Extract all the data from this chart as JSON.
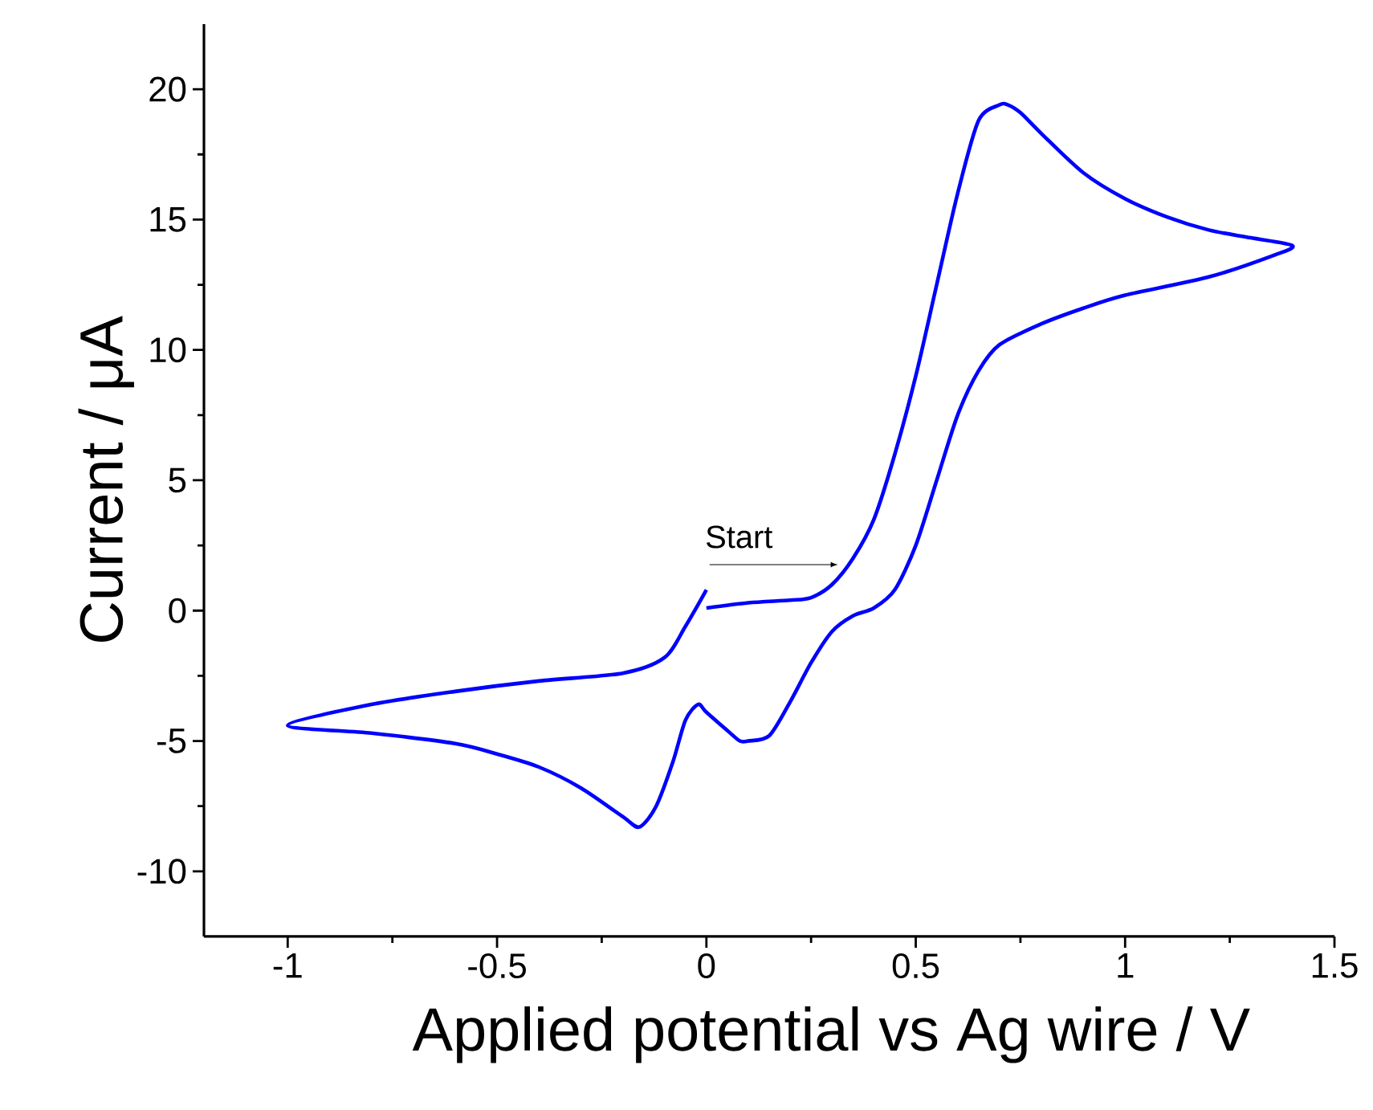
{
  "chart_data": {
    "type": "line",
    "xlabel": "Applied potential vs Ag wire / V",
    "ylabel": "Current / μA",
    "xlim": [
      -1.2,
      1.5
    ],
    "ylim": [
      -12.5,
      22.5
    ],
    "xticks": [
      -1,
      -0.5,
      0,
      0.5,
      1,
      1.5
    ],
    "yticks": [
      -10,
      -5,
      0,
      5,
      10,
      15,
      20
    ],
    "grid": false,
    "marker": "none",
    "line_style": "solid",
    "annotations": [
      {
        "text": "Start",
        "x": 0,
        "y": 0.1
      }
    ],
    "series": [
      {
        "color": "#0000ff",
        "x": [
          0,
          0.1,
          0.2,
          0.25,
          0.3,
          0.35,
          0.4,
          0.45,
          0.5,
          0.55,
          0.6,
          0.65,
          0.7,
          0.72,
          0.75,
          0.8,
          0.9,
          1.0,
          1.1,
          1.2,
          1.3,
          1.4,
          1.35,
          1.2,
          1.0,
          0.9,
          0.8,
          0.7,
          0.65,
          0.6,
          0.55,
          0.5,
          0.45,
          0.4,
          0.35,
          0.3,
          0.25,
          0.2,
          0.15,
          0.1,
          0.08,
          0.05,
          0.0,
          -0.02,
          -0.05,
          -0.08,
          -0.12,
          -0.16,
          -0.2,
          -0.3,
          -0.4,
          -0.5,
          -0.6,
          -0.8,
          -1.0,
          -0.8,
          -0.6,
          -0.4,
          -0.2,
          -0.1,
          -0.05,
          0
        ],
        "values": [
          0.1,
          0.3,
          0.4,
          0.5,
          1.0,
          2,
          3.5,
          6,
          9,
          12.5,
          16,
          18.8,
          19.4,
          19.4,
          19.1,
          18.3,
          16.8,
          15.8,
          15.1,
          14.6,
          14.3,
          14.0,
          13.6,
          12.8,
          12.1,
          11.6,
          11.0,
          10.2,
          9.2,
          7.5,
          5,
          2.5,
          0.8,
          0.1,
          -0.2,
          -0.8,
          -2,
          -3.5,
          -4.8,
          -5.0,
          -5.0,
          -4.6,
          -3.9,
          -3.6,
          -4.2,
          -5.8,
          -7.5,
          -8.3,
          -7.9,
          -6.8,
          -6.0,
          -5.5,
          -5.1,
          -4.7,
          -4.4,
          -3.6,
          -3.1,
          -2.7,
          -2.4,
          -1.8,
          -0.6,
          0.8
        ]
      }
    ]
  }
}
